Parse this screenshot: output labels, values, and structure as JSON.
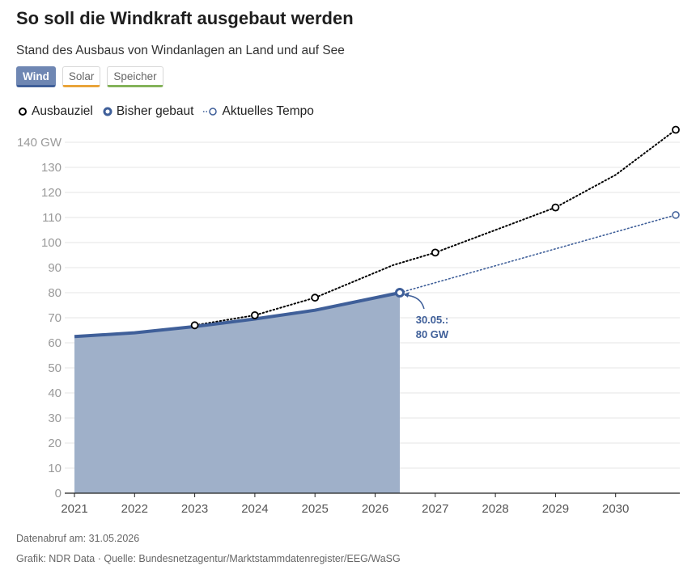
{
  "header": {
    "title": "So soll die Windkraft ausgebaut werden",
    "subtitle": "Stand des Ausbaus von Windanlagen an Land und auf See"
  },
  "tabs": [
    {
      "label": "Wind",
      "active": true,
      "color": "#3f5f99"
    },
    {
      "label": "Solar",
      "active": false,
      "color": "#e9a43a"
    },
    {
      "label": "Speicher",
      "active": false,
      "color": "#84b35a"
    }
  ],
  "colors": {
    "built_line": "#3f5f99",
    "built_fill": "#9fb0c9",
    "target": "#000000",
    "tempo": "#3f5f99",
    "annotation": "#3f5f99",
    "grid": "#e6e6e6",
    "axis_text": "#999999"
  },
  "chart_data": {
    "type": "line",
    "x_ticks": [
      "2021",
      "2022",
      "2023",
      "2024",
      "2025",
      "2026",
      "2027",
      "2028",
      "2029",
      "2030"
    ],
    "xlim": [
      2021,
      2031
    ],
    "y_ticks": [
      "140 GW",
      "130",
      "120",
      "110",
      "100",
      "90",
      "80",
      "70",
      "60",
      "50",
      "40",
      "30",
      "20",
      "10",
      "0"
    ],
    "ylim": [
      0,
      140
    ],
    "grid": true,
    "legend_position": "top-left",
    "series": [
      {
        "name": "Ausbauziel",
        "style": "dotted-black",
        "points": [
          [
            2023.0,
            67
          ],
          [
            2024.0,
            71
          ],
          [
            2025.0,
            78
          ],
          [
            2026.3,
            91
          ],
          [
            2027.0,
            96
          ],
          [
            2028.0,
            105
          ],
          [
            2029.0,
            114
          ],
          [
            2030.0,
            127
          ],
          [
            2031.0,
            145
          ]
        ],
        "markers": [
          [
            2023.0,
            67
          ],
          [
            2024.0,
            71
          ],
          [
            2025.0,
            78
          ],
          [
            2027.0,
            96
          ],
          [
            2029.0,
            114
          ],
          [
            2031.0,
            145
          ]
        ]
      },
      {
        "name": "Bisher gebaut",
        "style": "solid-blue-area",
        "points": [
          [
            2021.0,
            62.5
          ],
          [
            2022.0,
            64
          ],
          [
            2023.0,
            66.5
          ],
          [
            2024.0,
            69.5
          ],
          [
            2025.0,
            73
          ],
          [
            2026.41,
            80
          ]
        ],
        "markers": [
          [
            2026.41,
            80
          ]
        ]
      },
      {
        "name": "Aktuelles Tempo",
        "style": "dotted-blue",
        "points": [
          [
            2026.41,
            80
          ],
          [
            2031.0,
            111
          ]
        ],
        "markers": [
          [
            2031.0,
            111
          ]
        ]
      }
    ],
    "annotation": {
      "line1": "30.05.:",
      "line2": "80 GW",
      "x": 2026.41,
      "y": 80
    }
  },
  "footer": {
    "data_date": "Datenabruf am: 31.05.2026",
    "source": "Grafik: NDR Data · Quelle: Bundesnetzagentur/Marktstammdatenregister/EEG/WaSG"
  }
}
